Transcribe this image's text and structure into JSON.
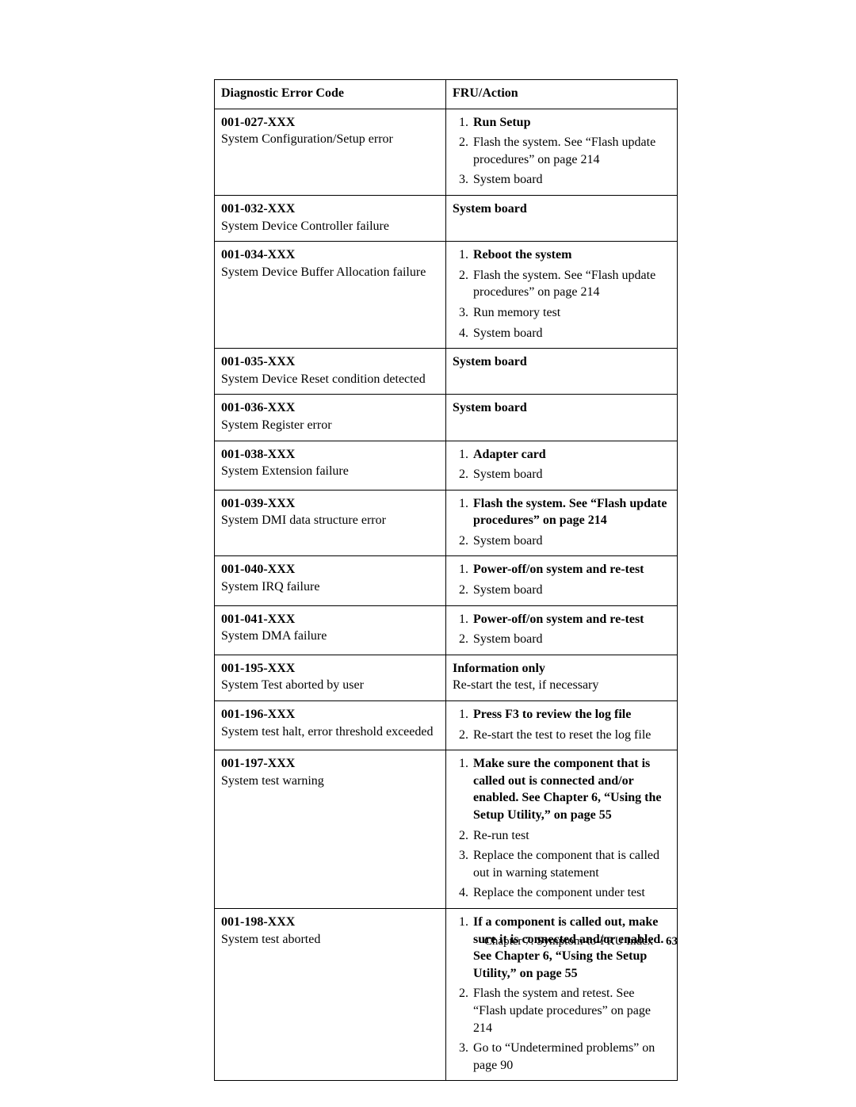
{
  "table": {
    "headers": {
      "code": "Diagnostic Error Code",
      "action": "FRU/Action"
    },
    "rows": [
      {
        "code": "001-027-XXX",
        "desc": "System Configuration/Setup error",
        "action_type": "list",
        "items": [
          {
            "bold": "Run Setup"
          },
          {
            "text": "Flash the system. See “Flash update procedures” on page 214"
          },
          {
            "text": "System board"
          }
        ]
      },
      {
        "code": "001-032-XXX",
        "desc": "System Device Controller failure",
        "action_type": "bold_text",
        "bold": "System board"
      },
      {
        "code": "001-034-XXX",
        "desc": "System Device Buffer Allocation failure",
        "action_type": "list",
        "items": [
          {
            "bold": "Reboot the system"
          },
          {
            "text": "Flash the system. See “Flash update procedures” on page 214"
          },
          {
            "text": "Run memory test"
          },
          {
            "text": "System board"
          }
        ]
      },
      {
        "code": "001-035-XXX",
        "desc": "System Device Reset condition detected",
        "action_type": "bold_text",
        "bold": "System board"
      },
      {
        "code": "001-036-XXX",
        "desc": "System Register error",
        "action_type": "bold_text",
        "bold": "System board"
      },
      {
        "code": "001-038-XXX",
        "desc": "System Extension failure",
        "action_type": "list",
        "items": [
          {
            "bold": "Adapter card"
          },
          {
            "text": "System board"
          }
        ]
      },
      {
        "code": "001-039-XXX",
        "desc": "System DMI data structure error",
        "action_type": "list",
        "items": [
          {
            "bold": "Flash the system. See “Flash update procedures” on page 214"
          },
          {
            "text": "System board"
          }
        ]
      },
      {
        "code": "001-040-XXX",
        "desc": "System IRQ failure",
        "action_type": "list",
        "items": [
          {
            "bold": "Power-off/on system and re-test"
          },
          {
            "text": "System board"
          }
        ]
      },
      {
        "code": "001-041-XXX",
        "desc": "System DMA failure",
        "action_type": "list",
        "items": [
          {
            "bold": "Power-off/on system and re-test"
          },
          {
            "text": "System board"
          }
        ]
      },
      {
        "code": "001-195-XXX",
        "desc": "System Test aborted by user",
        "action_type": "bold_line_text",
        "bold": "Information only",
        "text": "Re-start the test, if necessary"
      },
      {
        "code": "001-196-XXX",
        "desc": "System test halt, error threshold exceeded",
        "action_type": "list",
        "items": [
          {
            "bold": "Press F3 to review the log file"
          },
          {
            "text": "Re-start the test to reset the log file"
          }
        ]
      },
      {
        "code": "001-197-XXX",
        "desc": "System test warning",
        "action_type": "list",
        "items": [
          {
            "bold": "Make sure the component that is called out is connected and/or enabled. See Chapter 6, “Using the Setup Utility,” on page 55"
          },
          {
            "text": "Re-run test"
          },
          {
            "text": "Replace the component that is called out in warning statement"
          },
          {
            "text": "Replace the component under test"
          }
        ]
      },
      {
        "code": "001-198-XXX",
        "desc": "System test aborted",
        "action_type": "list",
        "items": [
          {
            "bold": "If a component is called out, make sure it is connected and/or enabled. See Chapter 6, “Using the Setup Utility,” on page 55"
          },
          {
            "text": "Flash the system and retest. See “Flash update procedures” on page 214"
          },
          {
            "text": "Go to “Undetermined problems” on page 90"
          }
        ]
      }
    ]
  },
  "footer": {
    "chapter": "Chapter 7. Symptom-to-FRU Index",
    "page": "63"
  }
}
